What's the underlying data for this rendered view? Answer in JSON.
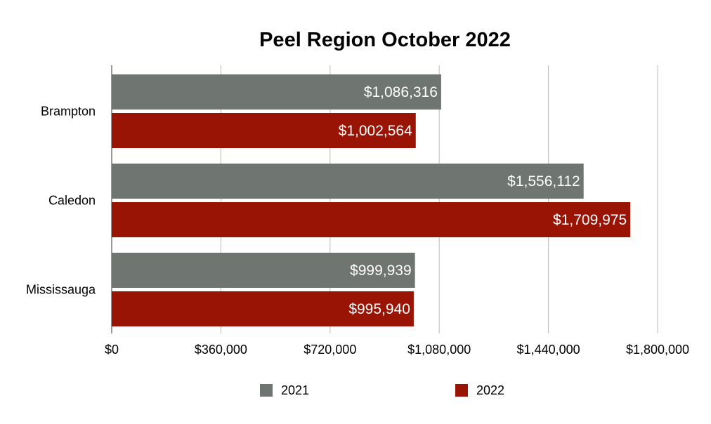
{
  "chart_data": {
    "type": "bar",
    "orientation": "horizontal",
    "title": "Peel Region October 2022",
    "xlabel": "",
    "ylabel": "",
    "categories": [
      "Brampton",
      "Caledon",
      "Mississauga"
    ],
    "series": [
      {
        "name": "2021",
        "color": "#6f7571",
        "values": [
          1086316,
          1556112,
          999939
        ],
        "labels": [
          "$1,086,316",
          "$1,556,112",
          "$999,939"
        ]
      },
      {
        "name": "2022",
        "color": "#9a1406",
        "values": [
          1002564,
          1709975,
          995940
        ],
        "labels": [
          "$1,002,564",
          "$1,709,975",
          "$995,940"
        ]
      }
    ],
    "xlim": [
      0,
      1800000
    ],
    "ticks": [
      0,
      360000,
      720000,
      1080000,
      1440000,
      1800000
    ],
    "tick_labels": [
      "$0",
      "$360,000",
      "$720,000",
      "$1,080,000",
      "$1,440,000",
      "$1,800,000"
    ],
    "grid": true,
    "legend_position": "bottom"
  }
}
